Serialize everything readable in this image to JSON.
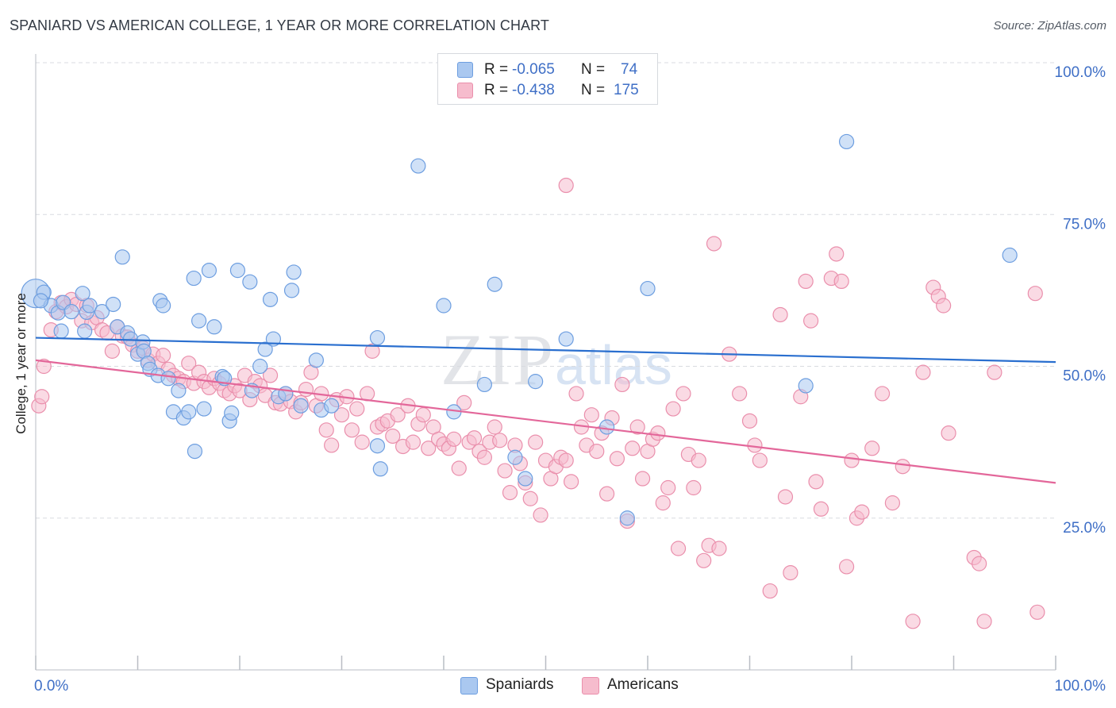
{
  "title": "SPANIARD VS AMERICAN COLLEGE, 1 YEAR OR MORE CORRELATION CHART",
  "source": "Source: ZipAtlas.com",
  "watermark": {
    "zip": "ZIP",
    "atlas": "atlas"
  },
  "colors": {
    "blue_fill": "#aac8f0",
    "blue_stroke": "#6d9ee0",
    "blue_line": "#2a6fcf",
    "pink_fill": "#f6bccd",
    "pink_stroke": "#ea8fac",
    "pink_line": "#e3679a",
    "tick_label": "#3f6fc6",
    "grid": "#d8dbe0"
  },
  "legend": {
    "rows": [
      {
        "r_label": "R =",
        "r_value": "-0.065",
        "n_label": "N =",
        "n_value": "74"
      },
      {
        "r_label": "R =",
        "r_value": "-0.438",
        "n_label": "N =",
        "n_value": "175"
      }
    ]
  },
  "bottom_legend": {
    "spaniards": "Spaniards",
    "americans": "Americans"
  },
  "chart_data": {
    "type": "scatter",
    "ylabel": "College, 1 year or more",
    "xlim": [
      0,
      100
    ],
    "ylim": [
      0,
      100
    ],
    "x_tick_labels": [
      "0.0%",
      "100.0%"
    ],
    "y_tick_labels": [
      "25.0%",
      "50.0%",
      "75.0%",
      "100.0%"
    ],
    "y_ticks": [
      25,
      50,
      75,
      100
    ],
    "grid": true,
    "legend_position": "top-center",
    "series": [
      {
        "name": "Spaniards",
        "r": -0.065,
        "n": 74,
        "trend": {
          "x": [
            0,
            100
          ],
          "y": [
            54.7,
            50.7
          ]
        },
        "points": [
          [
            0.0,
            62.0
          ],
          [
            0.8,
            62.2
          ],
          [
            1.5,
            60.0
          ],
          [
            2.2,
            58.8
          ],
          [
            2.5,
            55.8
          ],
          [
            2.7,
            60.5
          ],
          [
            3.5,
            59.0
          ],
          [
            4.6,
            62.0
          ],
          [
            5.0,
            58.9
          ],
          [
            4.8,
            55.8
          ],
          [
            5.3,
            60.0
          ],
          [
            6.5,
            59.0
          ],
          [
            7.6,
            60.2
          ],
          [
            8.0,
            56.5
          ],
          [
            8.5,
            68.0
          ],
          [
            9.0,
            55.5
          ],
          [
            9.3,
            54.5
          ],
          [
            10.0,
            52.0
          ],
          [
            10.5,
            54.0
          ],
          [
            10.6,
            52.5
          ],
          [
            11.0,
            50.5
          ],
          [
            11.2,
            49.5
          ],
          [
            12.0,
            48.5
          ],
          [
            12.2,
            60.8
          ],
          [
            12.5,
            60.0
          ],
          [
            13.0,
            48.0
          ],
          [
            13.5,
            42.5
          ],
          [
            14.0,
            46.0
          ],
          [
            14.5,
            41.5
          ],
          [
            15.0,
            42.5
          ],
          [
            15.5,
            64.5
          ],
          [
            15.6,
            36.0
          ],
          [
            16.0,
            57.5
          ],
          [
            16.5,
            43.0
          ],
          [
            17.0,
            65.8
          ],
          [
            17.5,
            56.5
          ],
          [
            18.3,
            48.3
          ],
          [
            18.5,
            48.0
          ],
          [
            19.0,
            41.0
          ],
          [
            19.2,
            42.3
          ],
          [
            19.8,
            65.8
          ],
          [
            21.0,
            63.9
          ],
          [
            21.2,
            46.0
          ],
          [
            22.0,
            50.0
          ],
          [
            22.5,
            52.8
          ],
          [
            23.0,
            61.0
          ],
          [
            23.8,
            45.0
          ],
          [
            23.3,
            54.5
          ],
          [
            24.5,
            45.5
          ],
          [
            25.1,
            62.5
          ],
          [
            25.3,
            65.5
          ],
          [
            26.0,
            43.5
          ],
          [
            27.5,
            51.0
          ],
          [
            28.0,
            42.8
          ],
          [
            29.0,
            43.5
          ],
          [
            33.5,
            36.9
          ],
          [
            33.5,
            54.7
          ],
          [
            33.8,
            33.1
          ],
          [
            37.5,
            83.0
          ],
          [
            40.0,
            60.0
          ],
          [
            41.0,
            42.5
          ],
          [
            44.0,
            47.0
          ],
          [
            45.0,
            63.5
          ],
          [
            47.0,
            35.0
          ],
          [
            48.0,
            31.5
          ],
          [
            49.0,
            47.5
          ],
          [
            52.0,
            54.5
          ],
          [
            56.0,
            40.0
          ],
          [
            58.0,
            25.0
          ],
          [
            60.0,
            62.8
          ],
          [
            75.5,
            46.8
          ],
          [
            79.5,
            87.0
          ],
          [
            95.5,
            68.3
          ],
          [
            0.5,
            60.8
          ]
        ]
      },
      {
        "name": "Americans",
        "r": -0.438,
        "n": 175,
        "trend": {
          "x": [
            0,
            100
          ],
          "y": [
            51.0,
            30.8
          ]
        },
        "points": [
          [
            0.3,
            43.5
          ],
          [
            0.6,
            45.0
          ],
          [
            0.8,
            50.0
          ],
          [
            1.5,
            56.0
          ],
          [
            2.0,
            59.0
          ],
          [
            2.5,
            60.5
          ],
          [
            3.0,
            59.8
          ],
          [
            3.5,
            61.0
          ],
          [
            4.0,
            60.2
          ],
          [
            4.5,
            57.5
          ],
          [
            5.0,
            60.0
          ],
          [
            5.5,
            57.2
          ],
          [
            6.0,
            58.0
          ],
          [
            6.5,
            56.0
          ],
          [
            7.0,
            55.5
          ],
          [
            7.5,
            52.5
          ],
          [
            8.0,
            56.5
          ],
          [
            8.5,
            55.0
          ],
          [
            9.0,
            54.8
          ],
          [
            9.5,
            53.5
          ],
          [
            10.0,
            52.5
          ],
          [
            10.5,
            53.0
          ],
          [
            11.0,
            51.0
          ],
          [
            11.5,
            52.0
          ],
          [
            12.0,
            50.5
          ],
          [
            12.5,
            51.8
          ],
          [
            13.0,
            49.5
          ],
          [
            13.5,
            48.5
          ],
          [
            14.0,
            48.0
          ],
          [
            14.5,
            47.5
          ],
          [
            15.0,
            50.5
          ],
          [
            15.5,
            47.2
          ],
          [
            16.0,
            49.0
          ],
          [
            16.5,
            47.5
          ],
          [
            17.0,
            46.5
          ],
          [
            17.5,
            48.0
          ],
          [
            18.0,
            47.2
          ],
          [
            18.5,
            46.0
          ],
          [
            19.0,
            45.5
          ],
          [
            19.5,
            46.8
          ],
          [
            20.0,
            46.0
          ],
          [
            20.5,
            48.5
          ],
          [
            21.0,
            44.5
          ],
          [
            21.5,
            47.5
          ],
          [
            22.0,
            46.8
          ],
          [
            22.5,
            45.2
          ],
          [
            23.0,
            48.5
          ],
          [
            23.5,
            44.0
          ],
          [
            24.0,
            43.8
          ],
          [
            24.5,
            45.5
          ],
          [
            25.0,
            44.2
          ],
          [
            25.5,
            42.5
          ],
          [
            26.0,
            44.0
          ],
          [
            26.5,
            46.2
          ],
          [
            27.0,
            49.0
          ],
          [
            27.5,
            43.5
          ],
          [
            28.0,
            45.5
          ],
          [
            28.5,
            39.5
          ],
          [
            29.0,
            37.0
          ],
          [
            29.5,
            44.5
          ],
          [
            30.0,
            42.0
          ],
          [
            30.5,
            45.0
          ],
          [
            31.0,
            39.5
          ],
          [
            31.5,
            43.0
          ],
          [
            32.0,
            37.5
          ],
          [
            32.5,
            45.5
          ],
          [
            33.0,
            52.5
          ],
          [
            33.5,
            40.0
          ],
          [
            34.0,
            40.5
          ],
          [
            34.5,
            41.0
          ],
          [
            35.0,
            38.5
          ],
          [
            35.5,
            42.0
          ],
          [
            36.0,
            36.8
          ],
          [
            36.5,
            43.5
          ],
          [
            37.0,
            37.5
          ],
          [
            37.5,
            40.5
          ],
          [
            38.0,
            42.0
          ],
          [
            38.5,
            36.5
          ],
          [
            39.0,
            40.0
          ],
          [
            39.5,
            38.0
          ],
          [
            40.0,
            37.2
          ],
          [
            40.5,
            36.5
          ],
          [
            41.0,
            38.0
          ],
          [
            41.5,
            33.2
          ],
          [
            42.0,
            44.0
          ],
          [
            42.5,
            37.5
          ],
          [
            43.0,
            38.2
          ],
          [
            43.5,
            36.0
          ],
          [
            44.0,
            35.0
          ],
          [
            44.5,
            37.5
          ],
          [
            45.0,
            40.0
          ],
          [
            45.5,
            37.8
          ],
          [
            46.0,
            32.8
          ],
          [
            46.5,
            29.2
          ],
          [
            47.0,
            37.0
          ],
          [
            47.5,
            34.0
          ],
          [
            48.0,
            30.8
          ],
          [
            48.5,
            28.2
          ],
          [
            49.0,
            37.5
          ],
          [
            49.5,
            25.5
          ],
          [
            50.0,
            34.5
          ],
          [
            50.5,
            31.5
          ],
          [
            51.0,
            33.5
          ],
          [
            51.5,
            35.0
          ],
          [
            52.0,
            34.5
          ],
          [
            52.5,
            31.0
          ],
          [
            53.0,
            45.5
          ],
          [
            53.5,
            40.0
          ],
          [
            54.0,
            37.0
          ],
          [
            54.5,
            42.0
          ],
          [
            55.0,
            36.0
          ],
          [
            55.5,
            39.0
          ],
          [
            56.0,
            29.0
          ],
          [
            56.5,
            41.5
          ],
          [
            57.0,
            34.8
          ],
          [
            57.5,
            47.0
          ],
          [
            58.0,
            24.5
          ],
          [
            58.5,
            36.5
          ],
          [
            59.0,
            40.0
          ],
          [
            59.5,
            31.5
          ],
          [
            60.0,
            36.0
          ],
          [
            60.5,
            38.0
          ],
          [
            61.0,
            39.0
          ],
          [
            61.5,
            27.5
          ],
          [
            62.0,
            30.0
          ],
          [
            62.5,
            43.0
          ],
          [
            63.0,
            20.0
          ],
          [
            63.5,
            45.5
          ],
          [
            64.0,
            35.5
          ],
          [
            64.5,
            30.0
          ],
          [
            65.0,
            34.5
          ],
          [
            65.5,
            18.0
          ],
          [
            66.0,
            20.5
          ],
          [
            66.5,
            70.2
          ],
          [
            67.0,
            20.0
          ],
          [
            68.0,
            52.0
          ],
          [
            69.0,
            45.5
          ],
          [
            70.0,
            41.0
          ],
          [
            70.5,
            37.0
          ],
          [
            71.0,
            34.5
          ],
          [
            72.0,
            13.0
          ],
          [
            73.0,
            58.5
          ],
          [
            73.5,
            28.5
          ],
          [
            74.0,
            16.0
          ],
          [
            75.0,
            45.0
          ],
          [
            75.5,
            64.0
          ],
          [
            76.0,
            57.5
          ],
          [
            76.5,
            31.0
          ],
          [
            77.0,
            26.5
          ],
          [
            78.0,
            64.5
          ],
          [
            78.5,
            68.5
          ],
          [
            79.0,
            64.0
          ],
          [
            79.5,
            17.0
          ],
          [
            80.0,
            34.5
          ],
          [
            80.5,
            25.0
          ],
          [
            81.0,
            26.0
          ],
          [
            82.0,
            36.5
          ],
          [
            83.0,
            45.5
          ],
          [
            84.0,
            27.5
          ],
          [
            85.0,
            33.5
          ],
          [
            86.0,
            8.0
          ],
          [
            87.0,
            49.0
          ],
          [
            88.0,
            63.0
          ],
          [
            88.5,
            61.5
          ],
          [
            89.0,
            60.0
          ],
          [
            89.5,
            39.0
          ],
          [
            92.0,
            18.5
          ],
          [
            92.5,
            17.5
          ],
          [
            93.0,
            8.0
          ],
          [
            94.0,
            49.0
          ],
          [
            98.0,
            62.0
          ],
          [
            98.2,
            9.5
          ],
          [
            52.0,
            79.8
          ]
        ]
      }
    ]
  }
}
